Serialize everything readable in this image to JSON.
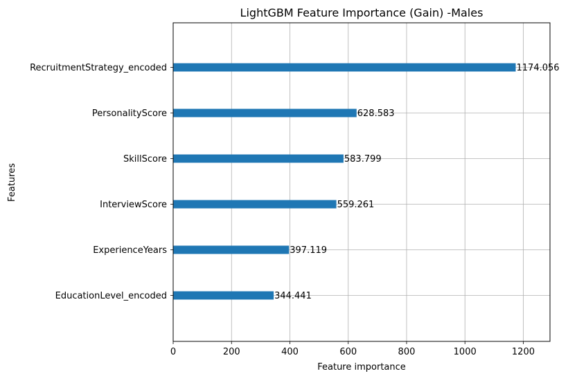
{
  "chart_data": {
    "type": "bar",
    "orientation": "horizontal",
    "title": "LightGBM Feature Importance (Gain) -Males",
    "xlabel": "Feature importance",
    "ylabel": "Features",
    "categories": [
      "RecruitmentStrategy_encoded",
      "PersonalityScore",
      "SkillScore",
      "InterviewScore",
      "ExperienceYears",
      "EducationLevel_encoded"
    ],
    "values": [
      1174.056,
      628.583,
      583.799,
      559.261,
      397.119,
      344.441
    ],
    "value_labels": [
      "1174.056",
      "628.583",
      "583.799",
      "559.261",
      "397.119",
      "344.441"
    ],
    "xlim": [
      0,
      1291.5
    ],
    "xticks": [
      0,
      200,
      400,
      600,
      800,
      1000,
      1200
    ],
    "xtick_labels": [
      "0",
      "200",
      "400",
      "600",
      "800",
      "1000",
      "1200"
    ],
    "grid": true,
    "bar_color": "#1f77b4",
    "grid_color": "#b0b0b0"
  }
}
